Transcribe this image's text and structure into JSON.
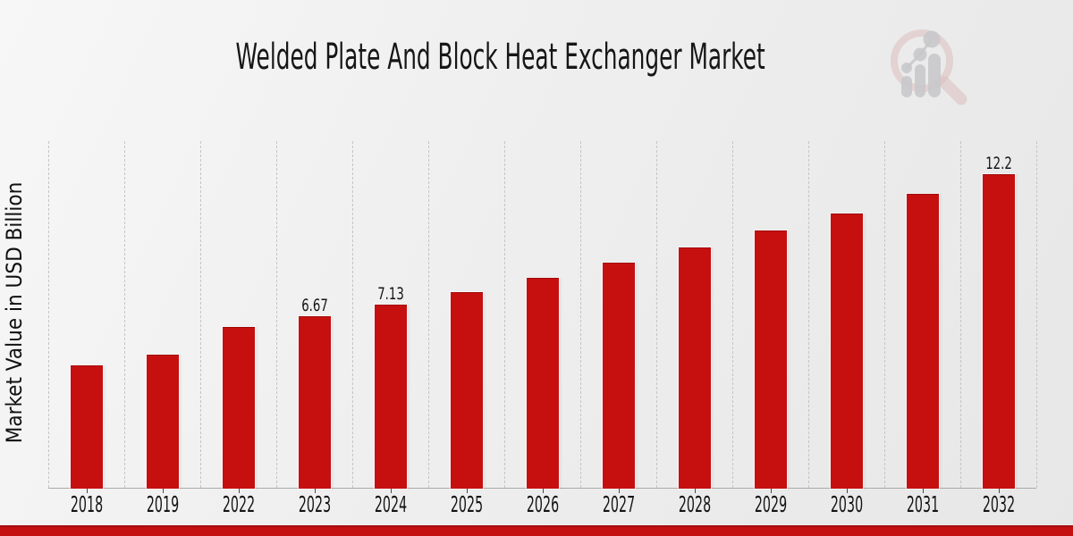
{
  "header": {
    "title": "Welded Plate And Block Heat Exchanger Market"
  },
  "chart_data": {
    "type": "bar",
    "title": "Welded Plate And Block Heat Exchanger Market",
    "xlabel": "",
    "ylabel": "Market Value in USD Billion",
    "categories": [
      "2018",
      "2019",
      "2022",
      "2023",
      "2024",
      "2025",
      "2026",
      "2027",
      "2028",
      "2029",
      "2030",
      "2031",
      "2032"
    ],
    "values": [
      4.75,
      5.17,
      6.25,
      6.67,
      7.13,
      7.62,
      8.16,
      8.75,
      9.35,
      10.0,
      10.66,
      11.44,
      12.2
    ],
    "data_labels": [
      "",
      "",
      "",
      "6.67",
      "7.13",
      "",
      "",
      "",
      "",
      "",
      "",
      "",
      "12.2"
    ],
    "labeled_points": [
      {
        "category": "2023",
        "label": "6.67"
      },
      {
        "category": "2024",
        "label": "7.13"
      },
      {
        "category": "2032",
        "label": "12.2"
      }
    ],
    "series_name": "Market Value in USD Billion",
    "ylim": [
      0,
      13.5
    ],
    "grid": "vertical-dashed-column-separators",
    "legend_position": "none",
    "bar_color": "#c61010",
    "axis_line_color": "#aaaaaa",
    "gridline_color": "#c5c5c5",
    "label_color": "#141414"
  },
  "footer": {
    "accent_bar_color": "#c41010"
  },
  "logo": {
    "name": "market-research-magnifier-bar-chart-logo",
    "ring_color": "#dbb9b9",
    "glyph_color": "#c2c2c6"
  }
}
